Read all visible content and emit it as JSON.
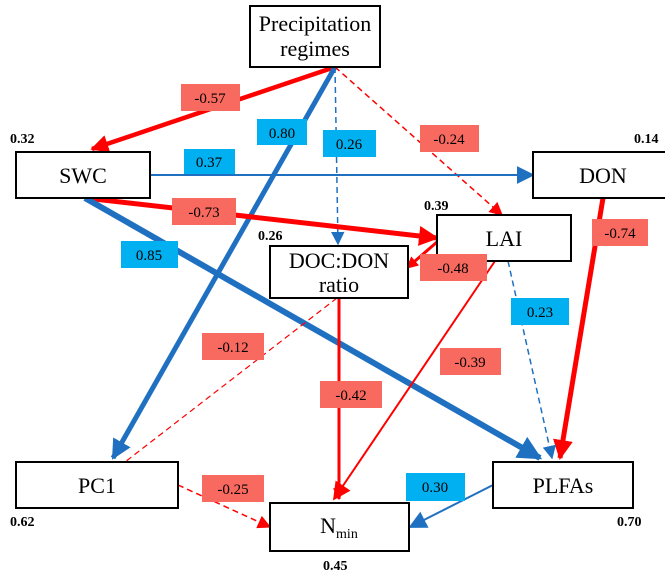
{
  "colors": {
    "positive": "#1f70c1",
    "negative": "#ff0000",
    "pos_label_bg": "#00b0f0",
    "neg_label_bg": "#f8695f"
  },
  "nodes": {
    "precip": {
      "line1": "Precipitation",
      "line2": "regimes"
    },
    "swc": {
      "label": "SWC",
      "r2": "0.32"
    },
    "don": {
      "label": "DON",
      "r2": "0.14"
    },
    "lai": {
      "label": "LAI",
      "r2": "0.39"
    },
    "docdon": {
      "line1": "DOC:DON",
      "line2": "ratio",
      "r2": "0.26"
    },
    "pc1": {
      "label": "PC1",
      "r2": "0.62"
    },
    "plfas": {
      "label": "PLFAs",
      "r2": "0.70"
    },
    "nmin": {
      "label": "N",
      "sub": "min",
      "r2": "0.45"
    }
  },
  "paths": [
    {
      "id": "precip-swc",
      "from": "Precipitation regimes",
      "to": "SWC",
      "coef": "-0.57",
      "sign": "negative",
      "style": "solid"
    },
    {
      "id": "precip-pc1",
      "from": "Precipitation regimes",
      "to": "PC1",
      "coef": "0.80",
      "sign": "positive",
      "style": "solid"
    },
    {
      "id": "precip-doc",
      "from": "Precipitation regimes",
      "to": "DOC:DON ratio",
      "coef": "0.26",
      "sign": "positive",
      "style": "dashed"
    },
    {
      "id": "precip-lai",
      "from": "Precipitation regimes",
      "to": "LAI",
      "coef": "-0.24",
      "sign": "negative",
      "style": "dashed"
    },
    {
      "id": "swc-don",
      "from": "SWC",
      "to": "DON",
      "coef": "0.37",
      "sign": "positive",
      "style": "solid"
    },
    {
      "id": "swc-lai",
      "from": "SWC",
      "to": "LAI",
      "coef": "-0.73",
      "sign": "negative",
      "style": "solid"
    },
    {
      "id": "swc-plfas",
      "from": "SWC",
      "to": "PLFAs",
      "coef": "0.85",
      "sign": "positive",
      "style": "solid"
    },
    {
      "id": "don-plfas",
      "from": "DON",
      "to": "PLFAs",
      "coef": "-0.74",
      "sign": "negative",
      "style": "solid"
    },
    {
      "id": "lai-doc",
      "from": "LAI",
      "to": "DOC:DON ratio",
      "coef": "-0.48",
      "sign": "negative",
      "style": "solid"
    },
    {
      "id": "lai-plfas",
      "from": "LAI",
      "to": "PLFAs",
      "coef": "0.23",
      "sign": "positive",
      "style": "dashed"
    },
    {
      "id": "lai-nmin",
      "from": "LAI",
      "to": "Nmin",
      "coef": "-0.39",
      "sign": "negative",
      "style": "solid"
    },
    {
      "id": "doc-pc1",
      "from": "DOC:DON ratio",
      "to": "PC1",
      "coef": "-0.12",
      "sign": "negative",
      "style": "dashed"
    },
    {
      "id": "doc-nmin",
      "from": "DOC:DON ratio",
      "to": "Nmin",
      "coef": "-0.42",
      "sign": "negative",
      "style": "solid"
    },
    {
      "id": "pc1-nmin",
      "from": "PC1",
      "to": "Nmin",
      "coef": "-0.25",
      "sign": "negative",
      "style": "dashed"
    },
    {
      "id": "plfas-nmin",
      "from": "PLFAs",
      "to": "Nmin",
      "coef": "0.30",
      "sign": "positive",
      "style": "solid"
    }
  ]
}
